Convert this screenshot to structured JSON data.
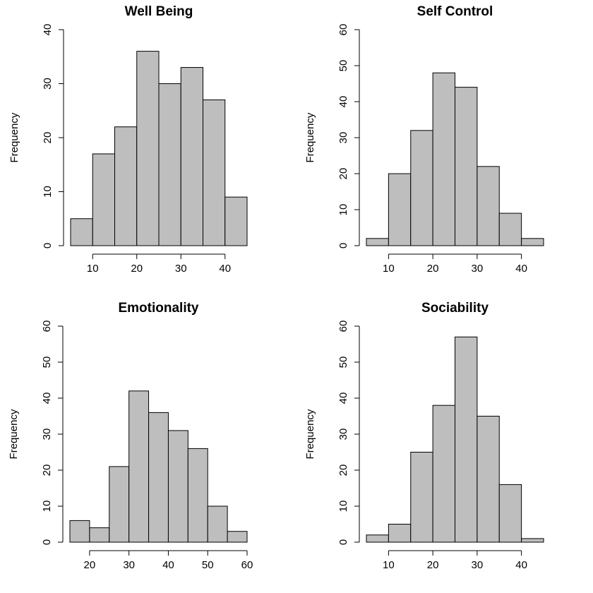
{
  "chart_data": [
    {
      "type": "bar",
      "subtype": "histogram",
      "title": "Well Being",
      "xlabel": "",
      "ylabel": "Frequency",
      "bin_width": 5,
      "bin_edges": [
        5,
        10,
        15,
        20,
        25,
        30,
        35,
        40,
        45
      ],
      "values": [
        5,
        17,
        22,
        36,
        30,
        33,
        27,
        9
      ],
      "xlim": [
        5,
        45
      ],
      "ylim": [
        0,
        40
      ],
      "x_ticks": [
        10,
        20,
        30,
        40
      ],
      "y_ticks": [
        0,
        10,
        20,
        30,
        40
      ],
      "fill_color": "#bebebe"
    },
    {
      "type": "bar",
      "subtype": "histogram",
      "title": "Self Control",
      "xlabel": "",
      "ylabel": "Frequency",
      "bin_width": 5,
      "bin_edges": [
        5,
        10,
        15,
        20,
        25,
        30,
        35,
        40,
        45
      ],
      "values": [
        2,
        20,
        32,
        48,
        44,
        22,
        9,
        2
      ],
      "xlim": [
        5,
        45
      ],
      "ylim": [
        0,
        60
      ],
      "x_ticks": [
        10,
        20,
        30,
        40
      ],
      "y_ticks": [
        0,
        10,
        20,
        30,
        40,
        50,
        60
      ],
      "fill_color": "#bebebe"
    },
    {
      "type": "bar",
      "subtype": "histogram",
      "title": "Emotionality",
      "xlabel": "",
      "ylabel": "Frequency",
      "bin_width": 5,
      "bin_edges": [
        15,
        20,
        25,
        30,
        35,
        40,
        45,
        50,
        55,
        60
      ],
      "values": [
        6,
        4,
        21,
        42,
        36,
        31,
        26,
        10,
        3
      ],
      "xlim": [
        15,
        60
      ],
      "ylim": [
        0,
        60
      ],
      "x_ticks": [
        20,
        30,
        40,
        50,
        60
      ],
      "y_ticks": [
        0,
        10,
        20,
        30,
        40,
        50,
        60
      ],
      "fill_color": "#bebebe"
    },
    {
      "type": "bar",
      "subtype": "histogram",
      "title": "Sociability",
      "xlabel": "",
      "ylabel": "Frequency",
      "bin_width": 5,
      "bin_edges": [
        5,
        10,
        15,
        20,
        25,
        30,
        35,
        40,
        45
      ],
      "values": [
        2,
        5,
        25,
        38,
        57,
        35,
        16,
        1
      ],
      "xlim": [
        5,
        45
      ],
      "ylim": [
        0,
        60
      ],
      "x_ticks": [
        10,
        20,
        30,
        40
      ],
      "y_ticks": [
        0,
        10,
        20,
        30,
        40,
        50,
        60
      ],
      "fill_color": "#bebebe"
    }
  ]
}
